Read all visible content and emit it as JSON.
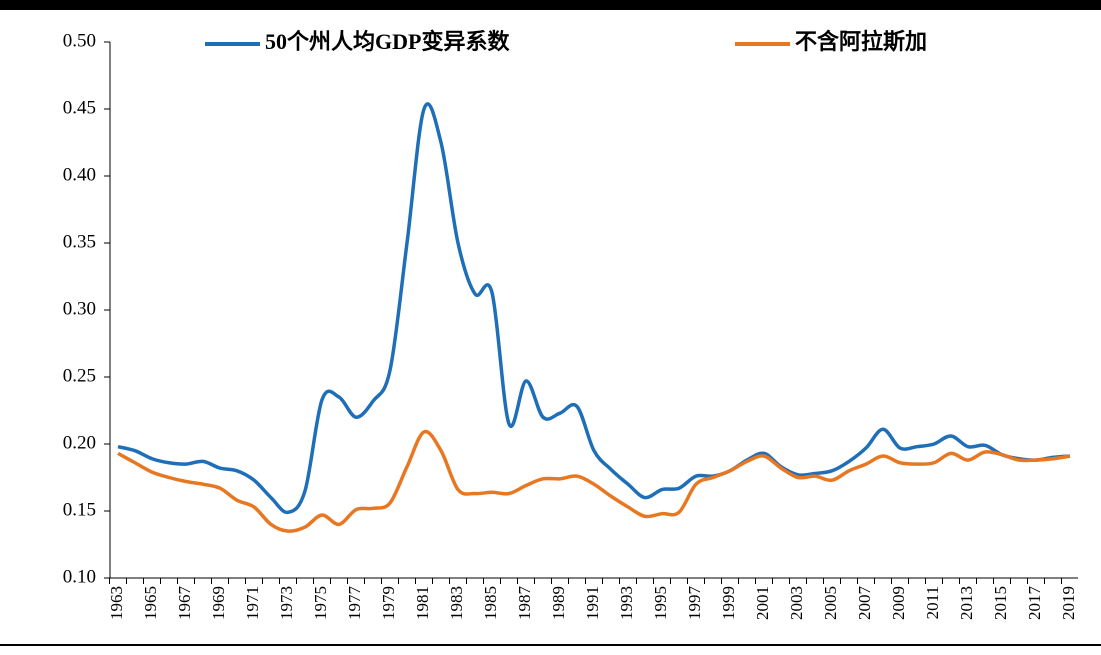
{
  "chart_data": {
    "type": "line",
    "categories": [
      "1963",
      null,
      "1965",
      null,
      "1967",
      null,
      "1969",
      null,
      "1971",
      null,
      "1973",
      null,
      "1975",
      null,
      "1977",
      null,
      "1979",
      null,
      "1981",
      null,
      "1983",
      null,
      "1985",
      null,
      "1987",
      null,
      "1989",
      null,
      "1991",
      null,
      "1993",
      null,
      "1995",
      null,
      "1997",
      null,
      "1999",
      null,
      "2001",
      null,
      "2003",
      null,
      "2005",
      null,
      "2007",
      null,
      "2009",
      null,
      "2011",
      null,
      "2013",
      null,
      "2015",
      null,
      "2017",
      null,
      "2019"
    ],
    "series": [
      {
        "name": "50个州人均GDP变异系数",
        "color": "#1f6fb8",
        "values": [
          0.198,
          0.195,
          0.189,
          0.186,
          0.185,
          0.187,
          0.182,
          0.18,
          0.173,
          0.16,
          0.149,
          0.165,
          0.233,
          0.235,
          0.22,
          0.232,
          0.255,
          0.35,
          0.45,
          0.425,
          0.35,
          0.312,
          0.313,
          0.215,
          0.247,
          0.22,
          0.223,
          0.228,
          0.195,
          0.181,
          0.17,
          0.16,
          0.166,
          0.167,
          0.176,
          0.176,
          0.18,
          0.188,
          0.193,
          0.183,
          0.177,
          0.178,
          0.18,
          0.187,
          0.197,
          0.211,
          0.197,
          0.198,
          0.2,
          0.206,
          0.198,
          0.199,
          0.192,
          0.189,
          0.188,
          0.19,
          0.191
        ]
      },
      {
        "name": "不含阿拉斯加",
        "color": "#e87722",
        "values": [
          0.193,
          0.186,
          0.179,
          0.175,
          0.172,
          0.17,
          0.167,
          0.158,
          0.153,
          0.14,
          0.135,
          0.138,
          0.147,
          0.14,
          0.151,
          0.152,
          0.156,
          0.183,
          0.209,
          0.195,
          0.166,
          0.163,
          0.164,
          0.163,
          0.169,
          0.174,
          0.174,
          0.176,
          0.17,
          0.161,
          0.153,
          0.146,
          0.148,
          0.149,
          0.17,
          0.175,
          0.18,
          0.187,
          0.191,
          0.182,
          0.175,
          0.176,
          0.173,
          0.18,
          0.185,
          0.191,
          0.186,
          0.185,
          0.186,
          0.193,
          0.188,
          0.194,
          0.192,
          0.188,
          0.188,
          0.189,
          0.191
        ]
      }
    ],
    "ylim": [
      0.1,
      0.5
    ],
    "yticks": [
      {
        "value": 0.1,
        "label": "0.10"
      },
      {
        "value": 0.15,
        "label": "0.15"
      },
      {
        "value": 0.2,
        "label": "0.20"
      },
      {
        "value": 0.25,
        "label": "0.25"
      },
      {
        "value": 0.3,
        "label": "0.30"
      },
      {
        "value": 0.35,
        "label": "0.35"
      },
      {
        "value": 0.4,
        "label": "0.40"
      },
      {
        "value": 0.45,
        "label": "0.45"
      },
      {
        "value": 0.5,
        "label": "0.50"
      }
    ],
    "legend": "top"
  }
}
